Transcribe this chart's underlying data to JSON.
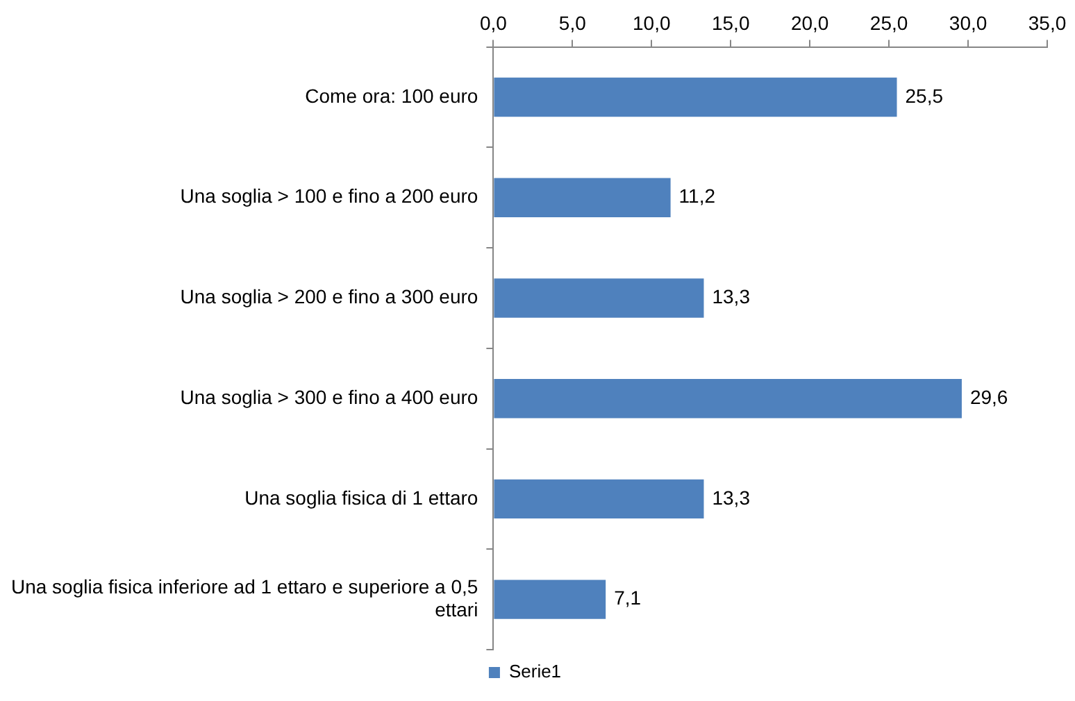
{
  "chart_data": {
    "type": "bar",
    "orientation": "horizontal",
    "categories": [
      "Come ora: 100 euro",
      "Una soglia > 100 e fino a 200 euro",
      "Una soglia > 200 e fino a 300 euro",
      "Una soglia > 300 e fino a 400 euro",
      "Una soglia fisica di 1 ettaro",
      "Una soglia fisica inferiore ad 1 ettaro e superiore a 0,5 ettari"
    ],
    "series": [
      {
        "name": "Serie1",
        "color": "#4f81bd",
        "values": [
          25.5,
          11.2,
          13.3,
          29.6,
          13.3,
          7.1
        ],
        "value_labels": [
          "25,5",
          "11,2",
          "13,3",
          "29,6",
          "13,3",
          "7,1"
        ]
      }
    ],
    "xlim": [
      0,
      35
    ],
    "xticks": [
      {
        "value": 0,
        "label": "0,0"
      },
      {
        "value": 5,
        "label": "5,0"
      },
      {
        "value": 10,
        "label": "10,0"
      },
      {
        "value": 15,
        "label": "15,0"
      },
      {
        "value": 20,
        "label": "20,0"
      },
      {
        "value": 25,
        "label": "25,0"
      },
      {
        "value": 30,
        "label": "30,0"
      },
      {
        "value": 35,
        "label": "35,0"
      }
    ],
    "grid": false,
    "legend": "bottom"
  }
}
